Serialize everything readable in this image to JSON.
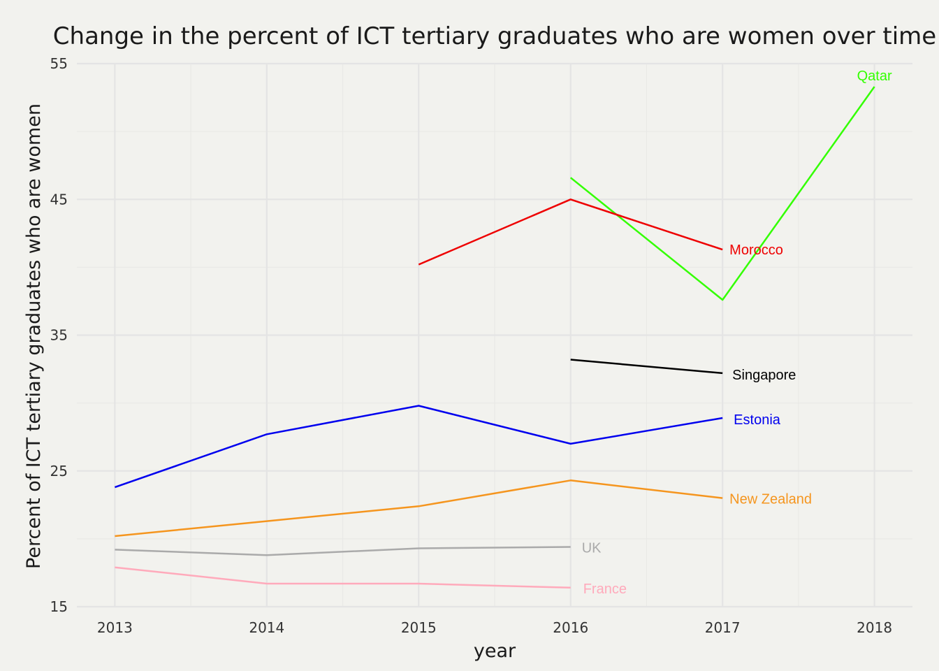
{
  "chart_data": {
    "type": "line",
    "title": "Change in the percent of ICT tertiary graduates who are women over time",
    "xlabel": "year",
    "ylabel": "Percent of ICT tertiary graduates who are women",
    "xlim": [
      2012.75,
      2018.25
    ],
    "ylim": [
      15,
      55
    ],
    "x_ticks": [
      2013,
      2014,
      2015,
      2016,
      2017,
      2018
    ],
    "y_ticks": [
      15,
      25,
      35,
      45,
      55
    ],
    "grid": true,
    "legend": "none (series labelled directly at line ends)",
    "series": [
      {
        "name": "Qatar",
        "color": "#33ff00",
        "x": [
          2016,
          2017,
          2018
        ],
        "y": [
          46.6,
          37.6,
          53.3
        ]
      },
      {
        "name": "Morocco",
        "color": "#ee0000",
        "x": [
          2015,
          2016,
          2017
        ],
        "y": [
          40.2,
          45.0,
          41.3
        ]
      },
      {
        "name": "Singapore",
        "color": "#000000",
        "x": [
          2016,
          2017
        ],
        "y": [
          33.2,
          32.2
        ]
      },
      {
        "name": "Estonia",
        "color": "#0000ee",
        "x": [
          2013,
          2014,
          2015,
          2016,
          2017
        ],
        "y": [
          23.8,
          27.7,
          29.8,
          27.0,
          28.9
        ]
      },
      {
        "name": "New Zealand",
        "color": "#f5951e",
        "x": [
          2013,
          2014,
          2015,
          2016,
          2017
        ],
        "y": [
          20.2,
          21.3,
          22.4,
          24.3,
          23.0
        ]
      },
      {
        "name": "UK",
        "color": "#aaaaaa",
        "x": [
          2013,
          2014,
          2015,
          2016
        ],
        "y": [
          19.2,
          18.8,
          19.3,
          19.4
        ]
      },
      {
        "name": "France",
        "color": "#ffaabb",
        "x": [
          2013,
          2014,
          2015,
          2016
        ],
        "y": [
          17.9,
          16.7,
          16.7,
          16.4
        ]
      }
    ]
  }
}
